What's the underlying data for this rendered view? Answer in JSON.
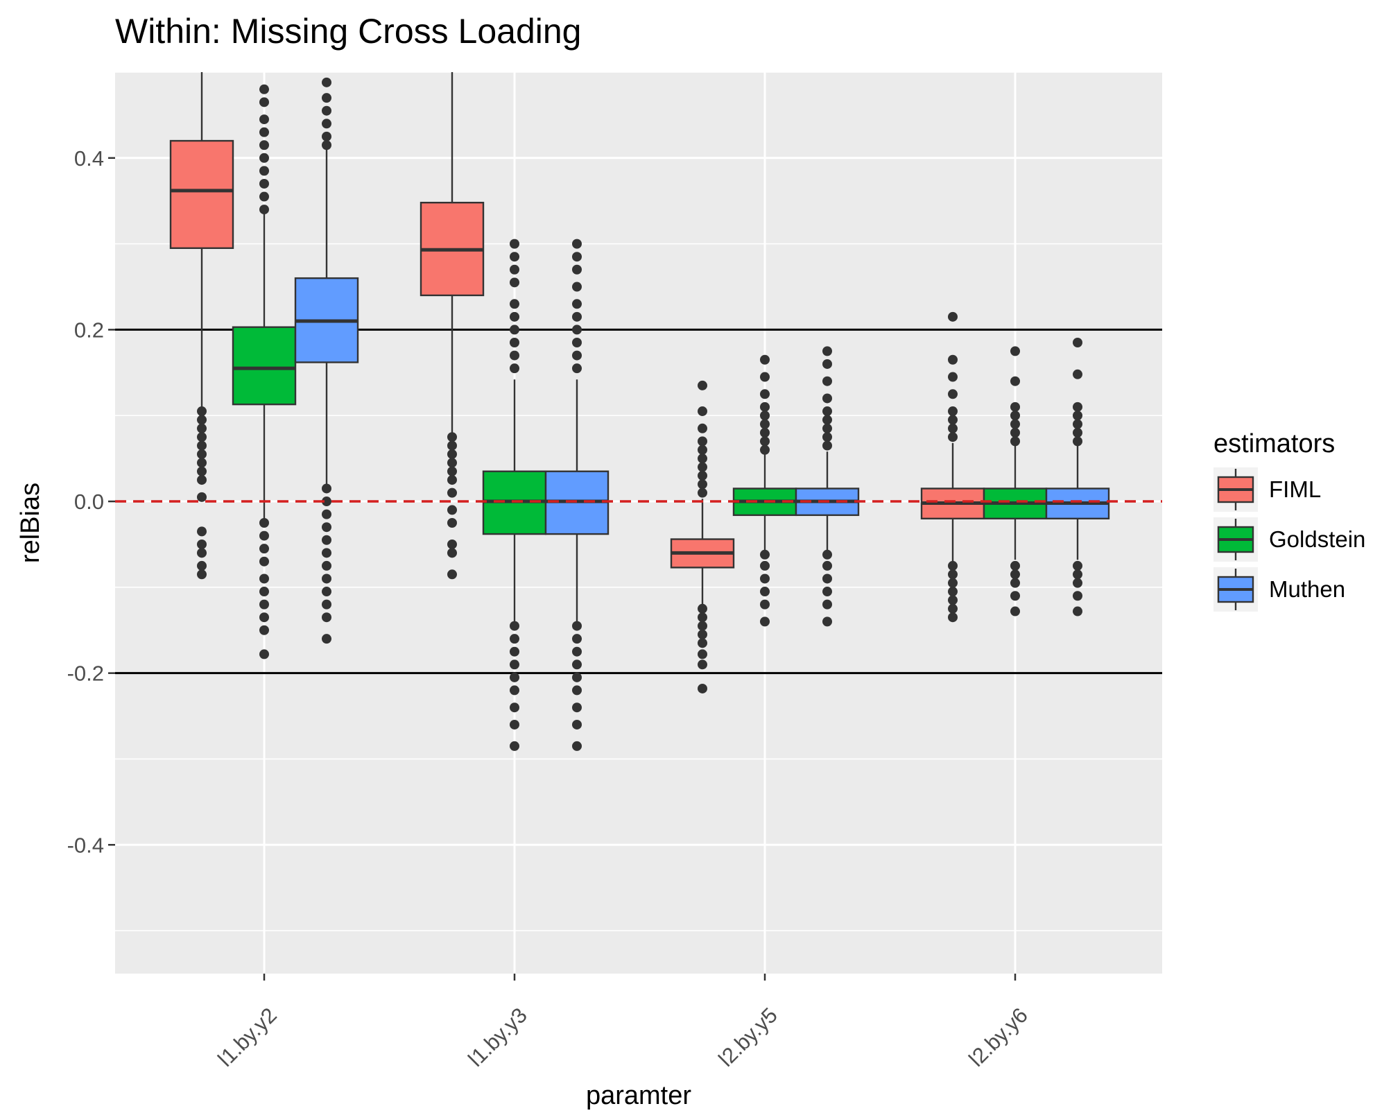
{
  "chart_data": {
    "type": "boxplot",
    "title": "Within: Missing Cross Loading",
    "xlabel": "paramter",
    "ylabel": "relBias",
    "ylim": [
      -0.55,
      0.5
    ],
    "yticks": [
      -0.4,
      -0.2,
      0.0,
      0.2,
      0.4
    ],
    "ytick_labels": [
      "-0.4",
      "-0.2",
      "0.0",
      "0.2",
      "0.4"
    ],
    "categories": [
      "l1.by.y2",
      "l1.by.y3",
      "l2.by.y5",
      "l2.by.y6"
    ],
    "reference_lines": [
      {
        "y": 0.2,
        "style": "solid",
        "color": "#000000"
      },
      {
        "y": -0.2,
        "style": "solid",
        "color": "#000000"
      },
      {
        "y": 0.0,
        "style": "dashed",
        "color": "#d42020"
      }
    ],
    "legend": {
      "title": "estimators",
      "placement": "right",
      "entries": [
        "FIML",
        "Goldstein",
        "Muthen"
      ]
    },
    "series": [
      {
        "name": "FIML",
        "color": "#f8766d",
        "boxes": [
          {
            "q1": 0.295,
            "median": 0.362,
            "q3": 0.42,
            "whisker_low": 0.11,
            "whisker_high": 0.5,
            "outliers": [
              0.105,
              0.095,
              0.085,
              0.075,
              0.065,
              0.055,
              0.045,
              0.035,
              0.025,
              0.005,
              -0.035,
              -0.05,
              -0.06,
              -0.075,
              -0.085
            ]
          },
          {
            "q1": 0.24,
            "median": 0.293,
            "q3": 0.348,
            "whisker_low": 0.08,
            "whisker_high": 0.5,
            "outliers": [
              0.075,
              0.065,
              0.055,
              0.045,
              0.035,
              0.025,
              0.01,
              -0.01,
              -0.025,
              -0.05,
              -0.06,
              -0.085
            ]
          },
          {
            "q1": -0.077,
            "median": -0.06,
            "q3": -0.044,
            "whisker_low": -0.122,
            "whisker_high": 0.003,
            "outliers": [
              0.135,
              0.105,
              0.085,
              0.07,
              0.06,
              0.05,
              0.04,
              0.03,
              0.02,
              0.01,
              -0.125,
              -0.135,
              -0.145,
              -0.155,
              -0.165,
              -0.178,
              -0.19,
              -0.218
            ]
          },
          {
            "q1": -0.02,
            "median": -0.002,
            "q3": 0.015,
            "whisker_low": -0.07,
            "whisker_high": 0.068,
            "outliers": [
              0.215,
              0.165,
              0.145,
              0.125,
              0.105,
              0.095,
              0.085,
              0.075,
              -0.075,
              -0.085,
              -0.095,
              -0.105,
              -0.115,
              -0.125,
              -0.135
            ]
          }
        ]
      },
      {
        "name": "Goldstein",
        "color": "#00ba38",
        "boxes": [
          {
            "q1": 0.113,
            "median": 0.155,
            "q3": 0.203,
            "whisker_low": -0.02,
            "whisker_high": 0.335,
            "outliers": [
              0.48,
              0.465,
              0.445,
              0.43,
              0.415,
              0.4,
              0.385,
              0.37,
              0.355,
              0.34,
              -0.025,
              -0.04,
              -0.055,
              -0.07,
              -0.09,
              -0.105,
              -0.12,
              -0.135,
              -0.15,
              -0.178
            ]
          },
          {
            "q1": -0.038,
            "median": 0.0,
            "q3": 0.035,
            "whisker_low": -0.142,
            "whisker_high": 0.142,
            "outliers": [
              0.3,
              0.285,
              0.27,
              0.255,
              0.23,
              0.215,
              0.2,
              0.185,
              0.17,
              0.155,
              -0.145,
              -0.16,
              -0.175,
              -0.19,
              -0.205,
              -0.22,
              -0.24,
              -0.26,
              -0.285
            ]
          },
          {
            "q1": -0.016,
            "median": 0.0,
            "q3": 0.015,
            "whisker_low": -0.058,
            "whisker_high": 0.058,
            "outliers": [
              0.165,
              0.145,
              0.125,
              0.11,
              0.1,
              0.09,
              0.08,
              0.07,
              0.06,
              -0.062,
              -0.075,
              -0.09,
              -0.105,
              -0.12,
              -0.14
            ]
          },
          {
            "q1": -0.02,
            "median": -0.002,
            "q3": 0.015,
            "whisker_low": -0.068,
            "whisker_high": 0.065,
            "outliers": [
              0.175,
              0.14,
              0.11,
              0.1,
              0.09,
              0.08,
              0.07,
              -0.075,
              -0.085,
              -0.095,
              -0.11,
              -0.128
            ]
          }
        ]
      },
      {
        "name": "Muthen",
        "color": "#619cff",
        "boxes": [
          {
            "q1": 0.162,
            "median": 0.21,
            "q3": 0.26,
            "whisker_low": 0.02,
            "whisker_high": 0.41,
            "outliers": [
              0.488,
              0.47,
              0.455,
              0.44,
              0.425,
              0.415,
              0.015,
              0.0,
              -0.015,
              -0.03,
              -0.045,
              -0.06,
              -0.075,
              -0.09,
              -0.105,
              -0.12,
              -0.135,
              -0.16
            ]
          },
          {
            "q1": -0.038,
            "median": 0.0,
            "q3": 0.035,
            "whisker_low": -0.142,
            "whisker_high": 0.142,
            "outliers": [
              0.3,
              0.285,
              0.27,
              0.25,
              0.23,
              0.215,
              0.2,
              0.185,
              0.17,
              0.155,
              -0.145,
              -0.16,
              -0.175,
              -0.19,
              -0.205,
              -0.22,
              -0.24,
              -0.26,
              -0.285
            ]
          },
          {
            "q1": -0.016,
            "median": 0.0,
            "q3": 0.015,
            "whisker_low": -0.058,
            "whisker_high": 0.058,
            "outliers": [
              0.175,
              0.16,
              0.14,
              0.12,
              0.105,
              0.095,
              0.085,
              0.075,
              0.065,
              -0.062,
              -0.075,
              -0.09,
              -0.105,
              -0.12,
              -0.14
            ]
          },
          {
            "q1": -0.02,
            "median": -0.002,
            "q3": 0.015,
            "whisker_low": -0.068,
            "whisker_high": 0.068,
            "outliers": [
              0.185,
              0.148,
              0.11,
              0.1,
              0.09,
              0.08,
              0.07,
              -0.075,
              -0.085,
              -0.095,
              -0.11,
              -0.128
            ]
          }
        ]
      }
    ]
  }
}
